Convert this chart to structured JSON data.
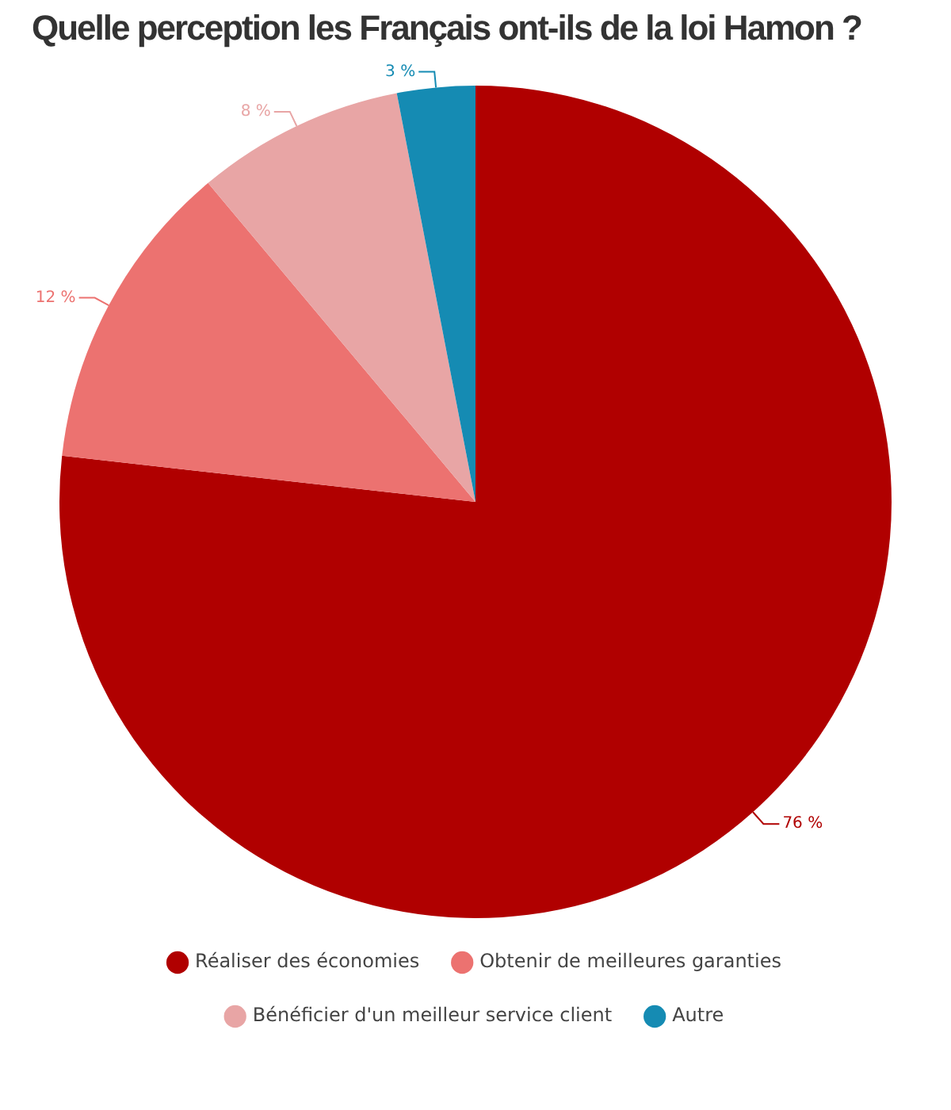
{
  "chart_data": {
    "type": "pie",
    "title": "Quelle perception les Français ont-ils de la loi Hamon ?",
    "categories": [
      "Réaliser des économies",
      "Obtenir de meilleures garanties",
      "Bénéficier d'un meilleur service client",
      "Autre"
    ],
    "values": [
      76,
      12,
      8,
      3
    ],
    "value_labels": [
      "76 %",
      "12 %",
      "8 %",
      "3 %"
    ],
    "colors": [
      "#b00000",
      "#ec7270",
      "#e8a5a5",
      "#158bb3"
    ],
    "legend": "bottom"
  }
}
